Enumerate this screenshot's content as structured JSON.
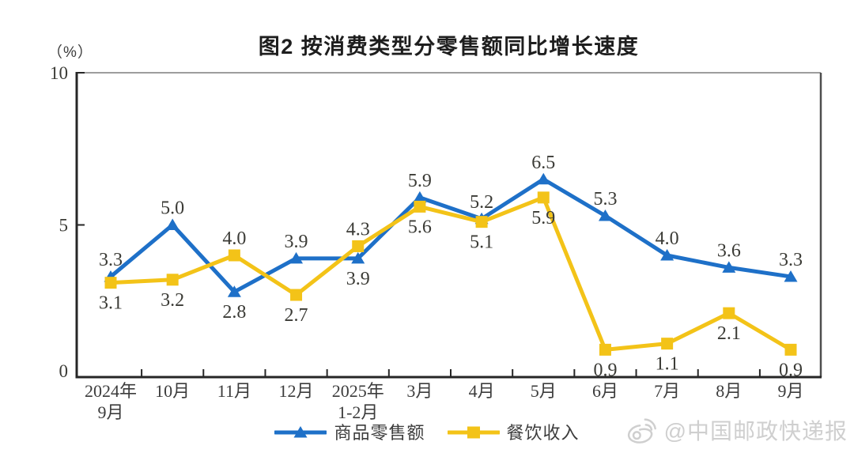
{
  "watermark": {
    "text": "@中国邮政快递报",
    "icon": "weibo-icon",
    "color": "#cfcfcf"
  },
  "colors": {
    "goods_line": "#1E70C8",
    "catering_line": "#F3C318",
    "axis": "#262626",
    "top_border": "#9d9d9d",
    "right_border": "#4e4e4e",
    "label_text": "#3b3b36"
  },
  "chart_data": {
    "type": "line",
    "title": "图2 按消费类型分零售额同比增长速度",
    "ylabel": "（%）",
    "xlabel": "",
    "ylim": [
      0,
      10
    ],
    "yticks": [
      0,
      5,
      10
    ],
    "grid": false,
    "legend_position": "bottom",
    "categories": [
      "2024年\n9月",
      "10月",
      "11月",
      "12月",
      "2025年\n1-2月",
      "3月",
      "4月",
      "5月",
      "6月",
      "7月",
      "8月",
      "9月"
    ],
    "series": [
      {
        "name": "商品零售额",
        "color": "#1E70C8",
        "marker": "triangle",
        "values": [
          3.3,
          5.0,
          2.8,
          3.9,
          3.9,
          5.9,
          5.2,
          6.5,
          5.3,
          4.0,
          3.6,
          3.3
        ],
        "label_positions": [
          "above",
          "above",
          "below",
          "above",
          "below",
          "above",
          "above",
          "above",
          "above",
          "above",
          "above",
          "above"
        ]
      },
      {
        "name": "餐饮收入",
        "color": "#F3C318",
        "marker": "square",
        "values": [
          3.1,
          3.2,
          4.0,
          2.7,
          4.3,
          5.6,
          5.1,
          5.9,
          0.9,
          1.1,
          2.1,
          0.9
        ],
        "label_positions": [
          "below",
          "below",
          "above",
          "below",
          "above",
          "below",
          "below",
          "below",
          "below",
          "below",
          "below",
          "below"
        ]
      }
    ]
  }
}
